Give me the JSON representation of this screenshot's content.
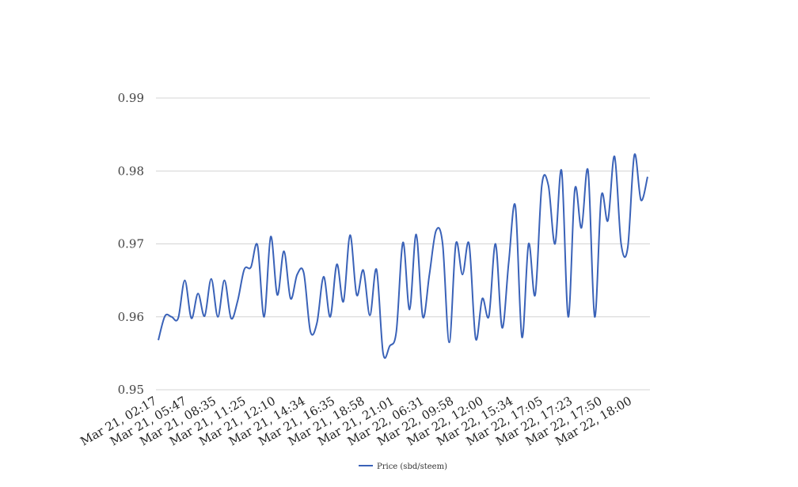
{
  "chart_data": {
    "type": "line",
    "title": "",
    "xlabel": "",
    "ylabel": "",
    "ylim": [
      0.95,
      0.99
    ],
    "yticks": [
      "0.95",
      "0.96",
      "0.97",
      "0.98",
      "0.99"
    ],
    "ytick_values": [
      0.95,
      0.96,
      0.97,
      0.98,
      0.99
    ],
    "xtick_labels": [
      "Mar 21, 02:17",
      "Mar 21, 05:47",
      "Mar 21, 08:35",
      "Mar 21, 11:25",
      "Mar 21, 12:10",
      "Mar 21, 14:34",
      "Mar 21, 16:35",
      "Mar 21, 18:58",
      "Mar 21, 21:01",
      "Mar 22, 06:31",
      "Mar 22, 09:58",
      "Mar 22, 12:00",
      "Mar 22, 15:34",
      "Mar 22, 17:05",
      "Mar 22, 17:23",
      "Mar 22, 17:50",
      "Mar 22, 18:00"
    ],
    "grid": true,
    "legend_position": "bottom-center",
    "series": [
      {
        "name": "Price (sbd/steem)",
        "color": "#3a62b8",
        "values": [
          0.9568,
          0.9601,
          0.96,
          0.9598,
          0.965,
          0.9598,
          0.9632,
          0.9601,
          0.9652,
          0.96,
          0.965,
          0.9598,
          0.9622,
          0.9665,
          0.9668,
          0.9698,
          0.96,
          0.971,
          0.963,
          0.969,
          0.9625,
          0.9658,
          0.966,
          0.958,
          0.9592,
          0.9655,
          0.96,
          0.9672,
          0.9621,
          0.9712,
          0.963,
          0.9664,
          0.9602,
          0.9665,
          0.955,
          0.956,
          0.958,
          0.9702,
          0.961,
          0.9713,
          0.96,
          0.9658,
          0.9718,
          0.97,
          0.9565,
          0.97,
          0.9658,
          0.97,
          0.957,
          0.9625,
          0.9601,
          0.97,
          0.9585,
          0.9675,
          0.9752,
          0.9572,
          0.97,
          0.963,
          0.978,
          0.978,
          0.97,
          0.98,
          0.96,
          0.9775,
          0.9722,
          0.98,
          0.96,
          0.9765,
          0.9732,
          0.982,
          0.97,
          0.9695,
          0.9822,
          0.976,
          0.9792
        ]
      }
    ]
  }
}
